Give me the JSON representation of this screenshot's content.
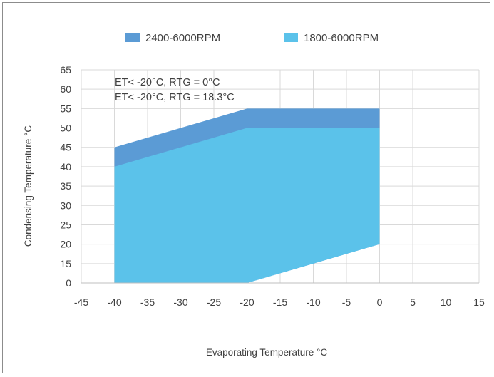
{
  "chart_data": {
    "type": "area",
    "xlabel": "Evaporating Temperature °C",
    "ylabel": "Condensing Temperature °C",
    "xlim": [
      -45,
      15
    ],
    "ylim": [
      0,
      65
    ],
    "x_ticks": [
      "-45",
      "-40",
      "-35",
      "-30",
      "-25",
      "-20",
      "-15",
      "-10",
      "-5",
      "0",
      "5",
      "10",
      "15"
    ],
    "y_ticks": [
      "0",
      "15",
      "20",
      "25",
      "30",
      "35",
      "40",
      "45",
      "50",
      "55",
      "60",
      "65"
    ],
    "y_tick_values": [
      0,
      15,
      20,
      25,
      30,
      35,
      40,
      45,
      50,
      55,
      60,
      65
    ],
    "grid": true,
    "legend_position": "top",
    "series": [
      {
        "name": "2400-6000RPM",
        "color": "#5b9bd5",
        "polygon": [
          [
            -40,
            0
          ],
          [
            -40,
            45
          ],
          [
            -20,
            55
          ],
          [
            0,
            55
          ],
          [
            0,
            20
          ],
          [
            -20,
            0
          ]
        ]
      },
      {
        "name": "1800-6000RPM",
        "color": "#5bc2ea",
        "polygon": [
          [
            -40,
            0
          ],
          [
            -40,
            40
          ],
          [
            -20,
            50
          ],
          [
            0,
            50
          ],
          [
            0,
            20
          ],
          [
            -20,
            0
          ]
        ]
      }
    ],
    "annotations": [
      "ET< -20°C, RTG = 0°C",
      "ET< -20°C, RTG = 18.3°C"
    ]
  }
}
